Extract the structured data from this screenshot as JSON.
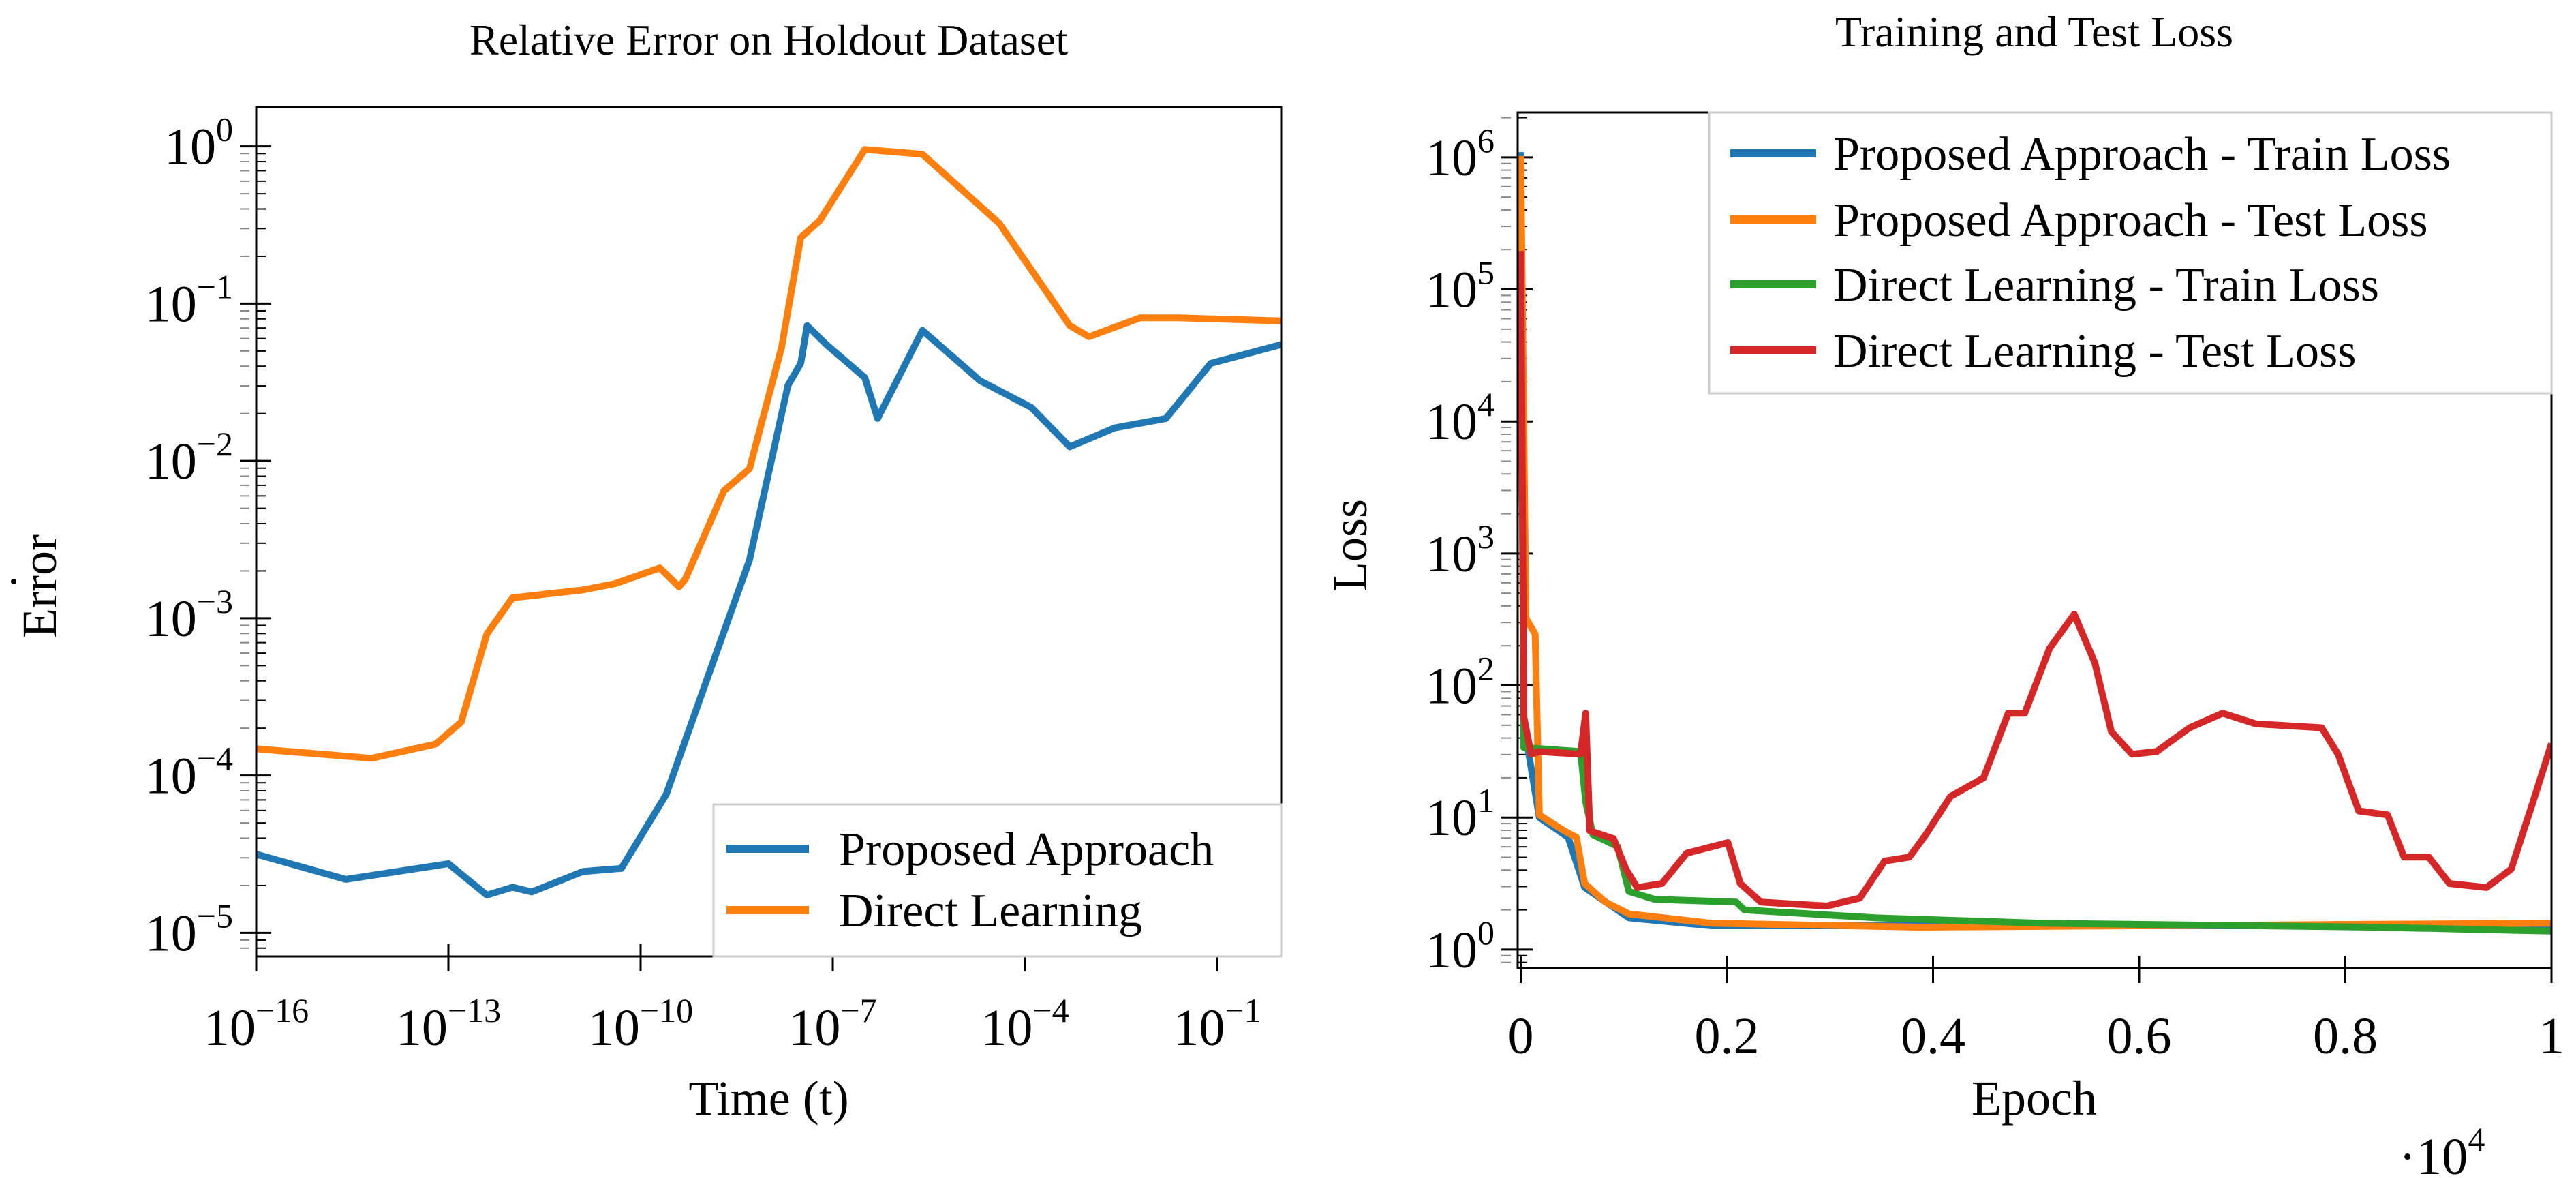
{
  "chart_data": [
    {
      "type": "line",
      "title": "Relative Error on Holdout Dataset",
      "xlabel": "Time (t)",
      "ylabel": "Error",
      "xscale": "log",
      "yscale": "log",
      "xlim_log10": [
        -16,
        0
      ],
      "ylim_log10": [
        -5.15,
        0.25
      ],
      "xticks": [
        {
          "base": "10",
          "exp": "−16",
          "v": -16
        },
        {
          "base": "10",
          "exp": "−13",
          "v": -13
        },
        {
          "base": "10",
          "exp": "−10",
          "v": -10
        },
        {
          "base": "10",
          "exp": "−7",
          "v": -7
        },
        {
          "base": "10",
          "exp": "−4",
          "v": -4
        },
        {
          "base": "10",
          "exp": "−1",
          "v": -1
        }
      ],
      "yticks": [
        {
          "base": "10",
          "exp": "0",
          "v": 0
        },
        {
          "base": "10",
          "exp": "−1",
          "v": -1
        },
        {
          "base": "10",
          "exp": "−2",
          "v": -2
        },
        {
          "base": "10",
          "exp": "−3",
          "v": -3
        },
        {
          "base": "10",
          "exp": "−4",
          "v": -4
        },
        {
          "base": "10",
          "exp": "−5",
          "v": -5
        }
      ],
      "legend_position": "bottom-right",
      "series": [
        {
          "name": "Proposed Approach",
          "color": "#1f77b4",
          "x_log10": [
            -16,
            -14.6,
            -13.0,
            -12.4,
            -12.0,
            -11.7,
            -10.9,
            -10.3,
            -9.6,
            -9.0,
            -8.3,
            -7.7,
            -7.5,
            -7.4,
            -7.1,
            -6.5,
            -6.3,
            -5.6,
            -4.7,
            -3.9,
            -3.3,
            -2.6,
            -1.8,
            -1.1,
            0
          ],
          "y_log10": [
            -4.5,
            -4.66,
            -4.56,
            -4.76,
            -4.71,
            -4.74,
            -4.61,
            -4.59,
            -4.12,
            -3.43,
            -2.63,
            -1.52,
            -1.38,
            -1.14,
            -1.26,
            -1.47,
            -1.73,
            -1.17,
            -1.49,
            -1.66,
            -1.91,
            -1.79,
            -1.73,
            -1.38,
            -1.26
          ]
        },
        {
          "name": "Direct Learning",
          "color": "#ff7f0e",
          "x_log10": [
            -16,
            -14.2,
            -13.2,
            -12.8,
            -12.4,
            -12.0,
            -10.9,
            -10.4,
            -9.7,
            -9.4,
            -9.3,
            -8.7,
            -8.3,
            -7.8,
            -7.5,
            -7.2,
            -6.5,
            -5.6,
            -4.4,
            -3.3,
            -3.0,
            -2.2,
            -1.6,
            0
          ],
          "y_log10": [
            -3.83,
            -3.89,
            -3.8,
            -3.66,
            -3.1,
            -2.87,
            -2.82,
            -2.78,
            -2.68,
            -2.8,
            -2.75,
            -2.19,
            -2.05,
            -1.28,
            -0.58,
            -0.47,
            -0.02,
            -0.05,
            -0.49,
            -1.14,
            -1.21,
            -1.09,
            -1.09,
            -1.11
          ]
        }
      ]
    },
    {
      "type": "line",
      "title": "Training and Test Loss",
      "xlabel": "Epoch",
      "x_multiplier": {
        "base": "·10",
        "exp": "4"
      },
      "ylabel": "Loss",
      "yscale": "log",
      "xlim": [
        -0.003,
        1
      ],
      "ylim_log10": [
        -0.14,
        6.34
      ],
      "xticks": [
        {
          "label": "0",
          "v": 0
        },
        {
          "label": "0.2",
          "v": 0.2
        },
        {
          "label": "0.4",
          "v": 0.4
        },
        {
          "label": "0.6",
          "v": 0.6
        },
        {
          "label": "0.8",
          "v": 0.8
        },
        {
          "label": "1",
          "v": 1
        }
      ],
      "yticks": [
        {
          "base": "10",
          "exp": "0",
          "v": 0
        },
        {
          "base": "10",
          "exp": "1",
          "v": 1
        },
        {
          "base": "10",
          "exp": "2",
          "v": 2
        },
        {
          "base": "10",
          "exp": "3",
          "v": 3
        },
        {
          "base": "10",
          "exp": "4",
          "v": 4
        },
        {
          "base": "10",
          "exp": "5",
          "v": 5
        },
        {
          "base": "10",
          "exp": "6",
          "v": 6
        }
      ],
      "legend_position": "top-right",
      "series": [
        {
          "name": "Proposed Approach - Train Loss",
          "color": "#1f77b4",
          "x": [
            0,
            0.003,
            0.018,
            0.046,
            0.062,
            0.105,
            0.185,
            0.585,
            1.0
          ],
          "y_log10": [
            6.04,
            1.71,
            1.0,
            0.85,
            0.47,
            0.24,
            0.18,
            0.18,
            0.18
          ]
        },
        {
          "name": "Proposed Approach - Test Loss",
          "color": "#ff7f0e",
          "x": [
            0,
            0.005,
            0.014,
            0.018,
            0.042,
            0.054,
            0.062,
            0.082,
            0.105,
            0.185,
            0.385,
            1.0
          ],
          "y_log10": [
            6.01,
            2.51,
            2.39,
            1.02,
            0.9,
            0.85,
            0.5,
            0.36,
            0.27,
            0.2,
            0.17,
            0.2
          ]
        },
        {
          "name": "Direct Learning - Train Loss",
          "color": "#2ca02c",
          "x": [
            0,
            0.003,
            0.058,
            0.063,
            0.07,
            0.094,
            0.105,
            0.13,
            0.209,
            0.217,
            0.345,
            0.505,
            0.825,
            1.0
          ],
          "y_log10": [
            5.29,
            1.53,
            1.5,
            1.12,
            0.87,
            0.78,
            0.44,
            0.38,
            0.36,
            0.3,
            0.24,
            0.2,
            0.17,
            0.14
          ]
        },
        {
          "name": "Direct Learning - Test Loss",
          "color": "#d62728",
          "x": [
            0,
            0.003,
            0.01,
            0.018,
            0.058,
            0.063,
            0.067,
            0.09,
            0.102,
            0.113,
            0.137,
            0.161,
            0.201,
            0.213,
            0.233,
            0.297,
            0.329,
            0.353,
            0.377,
            0.393,
            0.417,
            0.449,
            0.473,
            0.489,
            0.513,
            0.537,
            0.557,
            0.573,
            0.593,
            0.617,
            0.649,
            0.681,
            0.713,
            0.777,
            0.793,
            0.813,
            0.841,
            0.857,
            0.881,
            0.901,
            0.937,
            0.961,
            0.985,
            1.0
          ],
          "y_log10": [
            5.29,
            1.76,
            1.48,
            1.5,
            1.48,
            1.79,
            0.9,
            0.84,
            0.61,
            0.47,
            0.5,
            0.73,
            0.81,
            0.5,
            0.36,
            0.33,
            0.39,
            0.67,
            0.7,
            0.87,
            1.16,
            1.3,
            1.79,
            1.79,
            2.28,
            2.54,
            2.17,
            1.65,
            1.48,
            1.5,
            1.68,
            1.79,
            1.71,
            1.68,
            1.48,
            1.05,
            1.02,
            0.7,
            0.7,
            0.5,
            0.47,
            0.61,
            1.19,
            1.56
          ]
        }
      ]
    }
  ]
}
